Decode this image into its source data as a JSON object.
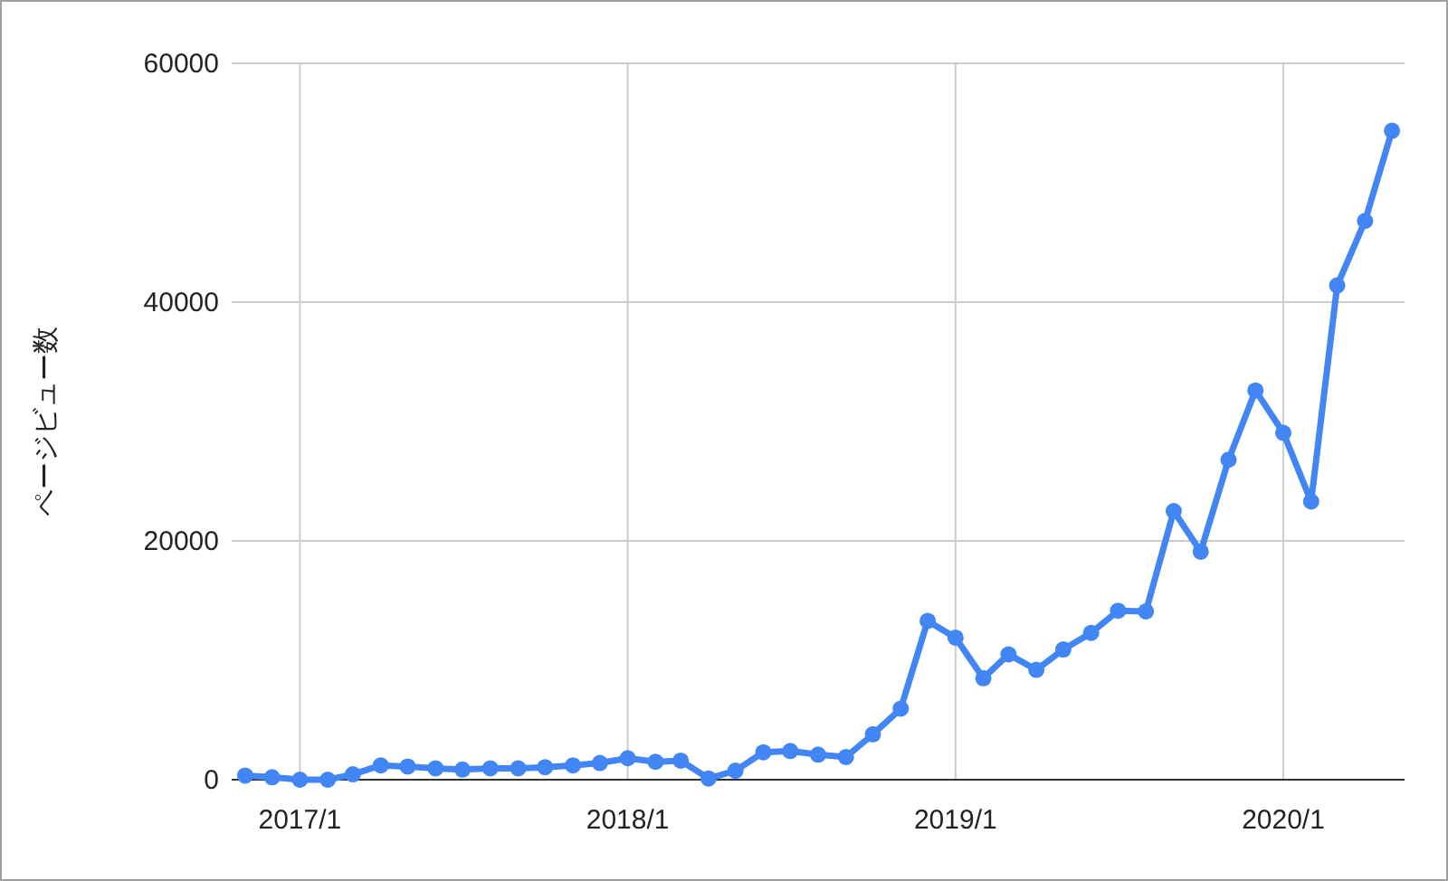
{
  "chart_data": {
    "type": "line",
    "ylabel": "ページビュー数",
    "x": [
      "2016-11",
      "2016-12",
      "2017-01",
      "2017-02",
      "2017-03",
      "2017-04",
      "2017-05",
      "2017-06",
      "2017-07",
      "2017-08",
      "2017-09",
      "2017-10",
      "2017-11",
      "2017-12",
      "2018-01",
      "2018-02",
      "2018-03",
      "2018-04",
      "2018-05",
      "2018-06",
      "2018-07",
      "2018-08",
      "2018-09",
      "2018-10",
      "2018-11",
      "2018-12",
      "2019-01",
      "2019-02",
      "2019-03",
      "2019-04",
      "2019-05",
      "2019-06",
      "2019-07",
      "2019-08",
      "2019-09",
      "2019-10",
      "2019-11",
      "2019-12",
      "2020-01",
      "2020-02",
      "2020-03",
      "2020-04",
      "2020-05"
    ],
    "series": [
      {
        "color": "#4285f4",
        "values": [
          350,
          200,
          0,
          0,
          450,
          1200,
          1100,
          950,
          850,
          950,
          950,
          1050,
          1200,
          1400,
          1800,
          1500,
          1600,
          100,
          750,
          2300,
          2400,
          2100,
          1900,
          3800,
          5950,
          13300,
          11900,
          8500,
          10500,
          9200,
          10900,
          12300,
          14150,
          14100,
          22500,
          19100,
          26800,
          32600,
          29050,
          23300,
          41400,
          46800,
          54350
        ]
      }
    ],
    "xlim": [
      "2016-10-17",
      "2020-05-15"
    ],
    "xticks": [
      {
        "value": "2017-01",
        "label": "2017/1"
      },
      {
        "value": "2018-01",
        "label": "2018/1"
      },
      {
        "value": "2019-01",
        "label": "2019/1"
      },
      {
        "value": "2020-01",
        "label": "2020/1"
      }
    ],
    "ylim": [
      0,
      60000
    ],
    "yticks": [
      0,
      20000,
      40000,
      60000
    ],
    "grid": true,
    "marker": "circle",
    "line_style": "solid"
  }
}
